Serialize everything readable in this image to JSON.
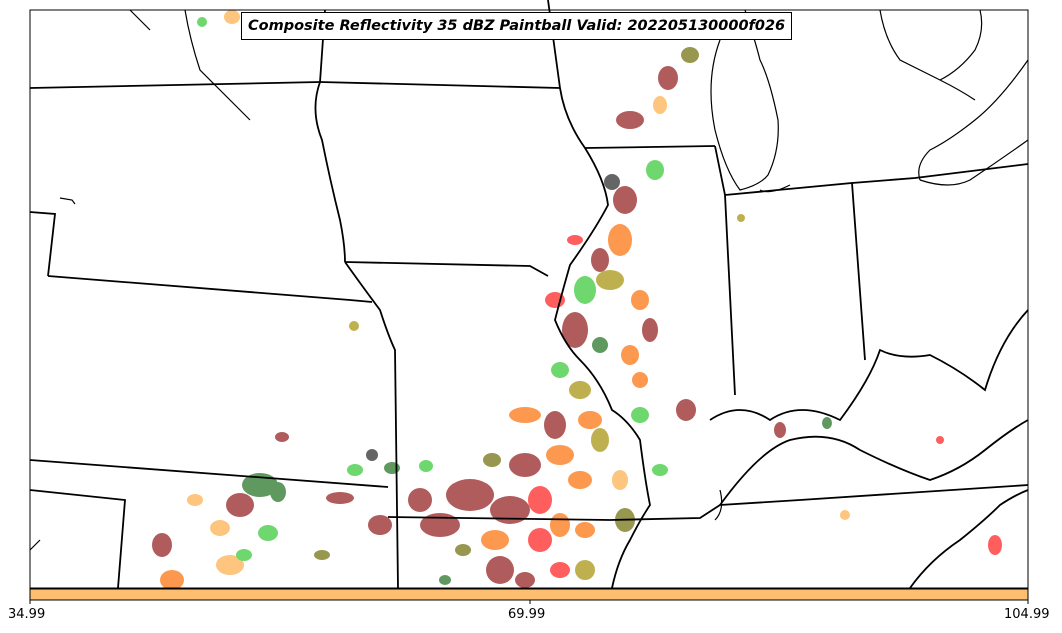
{
  "map": {
    "title": "Composite Reflectivity 35 dBZ Paintball Valid: 202205130000f026",
    "colors": {
      "border": "#000000",
      "colorbar": "#fdbf6f",
      "member_colors": [
        "#a94b4b",
        "#5fd35f",
        "#8c8c3c",
        "#fd8d3c",
        "#ff4d4d",
        "#4f8f4f",
        "#b8a83c",
        "#555555",
        "#fdbf6f"
      ]
    }
  },
  "colorbar": {
    "ticks": [
      "34.99",
      "69.99",
      "104.99"
    ]
  }
}
